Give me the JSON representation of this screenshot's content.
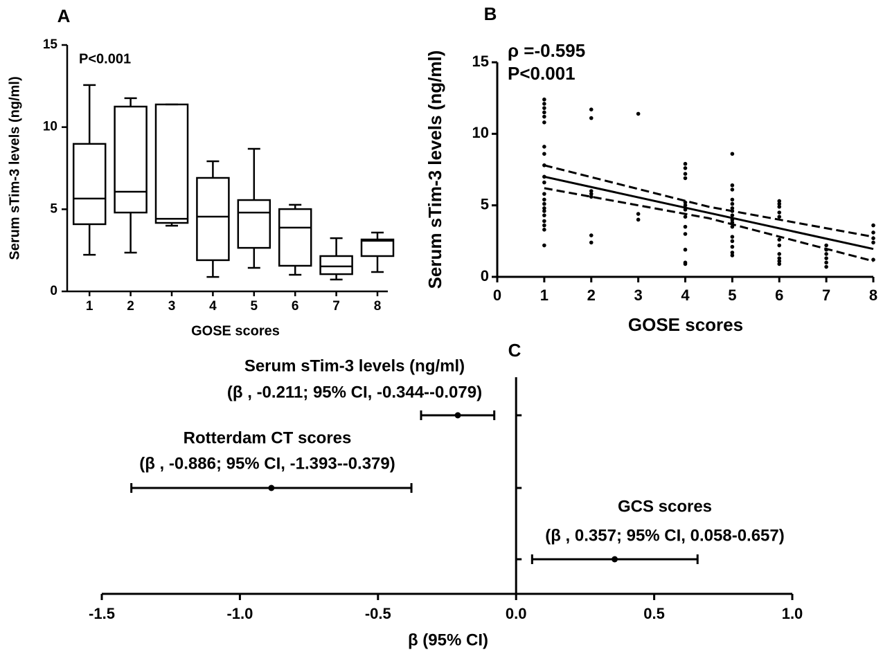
{
  "chart_data": [
    {
      "type": "box",
      "panel_label": "A",
      "annotation": "P<0.001",
      "x_label": "GOSE scores",
      "y_label": "Serum sTim-3 levels (ng/ml)",
      "categories": [
        "1",
        "2",
        "3",
        "4",
        "5",
        "6",
        "7",
        "8"
      ],
      "whisker_low": [
        2.23,
        2.36,
        4.0,
        0.88,
        1.43,
        1.01,
        0.72,
        1.18
      ],
      "q1": [
        4.09,
        4.8,
        4.17,
        1.9,
        2.65,
        1.56,
        1.05,
        2.15
      ],
      "median": [
        5.65,
        6.07,
        4.42,
        4.55,
        4.8,
        3.88,
        1.52,
        3.08
      ],
      "q3": [
        8.98,
        11.25,
        11.38,
        6.91,
        5.56,
        5.01,
        2.15,
        3.16
      ],
      "whisker_high": [
        12.56,
        11.76,
        11.38,
        7.92,
        8.68,
        5.27,
        3.24,
        3.58
      ],
      "color": "#000000",
      "ylim": [
        0,
        15
      ],
      "yticks": [
        0,
        5,
        10,
        15
      ]
    },
    {
      "type": "scatter",
      "panel_label": "B",
      "annotations": [
        "ρ =-0.595",
        "P<0.001"
      ],
      "x_label": "GOSE scores",
      "y_label": "Serum sTim-3 levels (ng/ml)",
      "x": [
        1,
        1,
        1,
        1,
        1,
        1,
        1,
        1,
        1,
        1,
        1,
        1,
        1,
        1,
        1,
        1,
        1,
        1,
        1,
        1,
        1,
        2,
        2,
        2,
        2,
        2,
        2,
        2,
        3,
        3,
        3,
        4,
        4,
        4,
        4,
        4,
        4,
        4,
        4,
        4,
        4,
        4,
        4,
        4,
        5,
        5,
        5,
        5,
        5,
        5,
        5,
        5,
        5,
        5,
        5,
        5,
        5,
        5,
        5,
        5,
        6,
        6,
        6,
        6,
        6,
        6,
        6,
        6,
        6,
        6,
        6,
        7,
        7,
        7,
        7,
        7,
        7,
        8,
        8,
        8,
        8,
        8
      ],
      "values": [
        12.4,
        12.1,
        11.8,
        11.5,
        11.2,
        10.8,
        9.1,
        8.6,
        7.8,
        7.0,
        6.6,
        5.8,
        5.4,
        5.1,
        4.8,
        4.6,
        4.3,
        3.9,
        3.6,
        3.3,
        2.2,
        11.7,
        11.1,
        6.0,
        5.8,
        5.6,
        2.9,
        2.4,
        11.4,
        4.4,
        4.0,
        7.9,
        7.6,
        7.2,
        6.9,
        5.2,
        5.0,
        4.7,
        4.2,
        3.5,
        3.0,
        1.9,
        1.0,
        0.9,
        8.6,
        6.4,
        6.1,
        5.4,
        5.1,
        4.8,
        4.6,
        4.3,
        4.0,
        3.8,
        3.5,
        2.8,
        2.5,
        2.1,
        1.7,
        1.5,
        5.3,
        5.1,
        4.9,
        4.5,
        4.2,
        2.6,
        2.2,
        1.6,
        1.3,
        1.1,
        0.9,
        2.2,
        1.9,
        1.6,
        1.3,
        1.0,
        0.7,
        3.6,
        3.1,
        2.7,
        2.4,
        1.2
      ],
      "lines": [
        {
          "x": [
            1,
            8
          ],
          "values": [
            7.0,
            1.95
          ],
          "linestyle": "solid"
        },
        {
          "x": [
            1,
            4.5,
            8
          ],
          "values": [
            7.8,
            4.9,
            2.8
          ],
          "linestyle": "dashed"
        },
        {
          "x": [
            1,
            4.5,
            8
          ],
          "values": [
            6.2,
            4.1,
            1.1
          ],
          "linestyle": "dashed"
        }
      ],
      "color": "#000000",
      "xlim": [
        0,
        8
      ],
      "xticks": [
        0,
        1,
        2,
        3,
        4,
        5,
        6,
        7,
        8
      ],
      "ylim": [
        0,
        15
      ],
      "yticks": [
        0,
        5,
        10,
        15
      ]
    },
    {
      "type": "forest",
      "panel_label": "C",
      "x_label": "β  (95% CI)",
      "categories": [
        "Serum sTim-3 levels (ng/ml)",
        "Rotterdam CT scores",
        "GCS scores"
      ],
      "ci_labels": [
        "(β , -0.211; 95% CI, -0.344--0.079)",
        "(β , -0.886; 95% CI, -1.393--0.379)",
        "(β , 0.357; 95% CI, 0.058-0.657)"
      ],
      "values": [
        -0.211,
        -0.886,
        0.357
      ],
      "lower": [
        -0.344,
        -1.393,
        0.058
      ],
      "upper": [
        -0.079,
        -0.379,
        0.657
      ],
      "color": "#000000",
      "xlim": [
        -1.5,
        1.0
      ],
      "xticks": [
        -1.5,
        {
          "value": -1,
          "label": "-1.0"
        },
        -0.5,
        {
          "value": 0,
          "label": "0.0"
        },
        0.5,
        {
          "value": 1,
          "label": "1.0"
        }
      ]
    }
  ]
}
